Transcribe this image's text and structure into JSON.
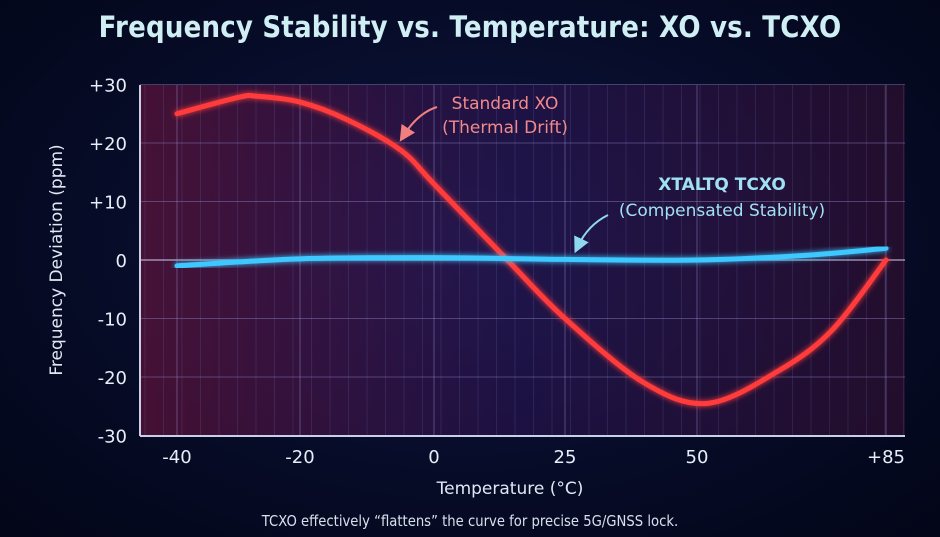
{
  "title": "Frequency Stability vs. Temperature: XO vs. TCXO",
  "caption": "TCXO effectively “flattens” the curve for precise 5G/GNSS lock.",
  "chart_data": {
    "type": "line",
    "title": "Frequency Stability vs. Temperature: XO vs. TCXO",
    "xlabel": "Temperature (°C)",
    "ylabel": "Frequency Deviation (ppm)",
    "x_ticks": [
      -40,
      -20,
      0,
      25,
      50,
      85
    ],
    "x_tick_labels": [
      "-40",
      "-20",
      "0",
      "25",
      "50",
      "+85"
    ],
    "y_ticks": [
      30,
      20,
      10,
      0,
      -10,
      -20,
      -30
    ],
    "y_tick_labels": [
      "+30",
      "+20",
      "+10",
      "0",
      "-10",
      "-20",
      "-30"
    ],
    "xlim": [
      -40,
      85
    ],
    "ylim": [
      -30,
      30
    ],
    "grid": true,
    "series": [
      {
        "name": "Standard XO",
        "annotation": "(Thermal Drift)",
        "color": "#ff3b3b",
        "x": [
          -40,
          -30,
          -27,
          -20,
          -13,
          -5,
          0,
          14,
          25,
          40,
          52,
          65,
          75,
          85
        ],
        "y": [
          25,
          27.8,
          28,
          27,
          24,
          18.8,
          13,
          0,
          -10,
          -21,
          -24.5,
          -19,
          -12,
          0
        ]
      },
      {
        "name": "XTALTQ TCXO",
        "annotation": "(Compensated Stability)",
        "color": "#3cc8ff",
        "x": [
          -40,
          -20,
          0,
          25,
          50,
          70,
          85
        ],
        "y": [
          -1,
          0.2,
          0.4,
          0.1,
          0,
          0.8,
          2
        ]
      }
    ]
  }
}
